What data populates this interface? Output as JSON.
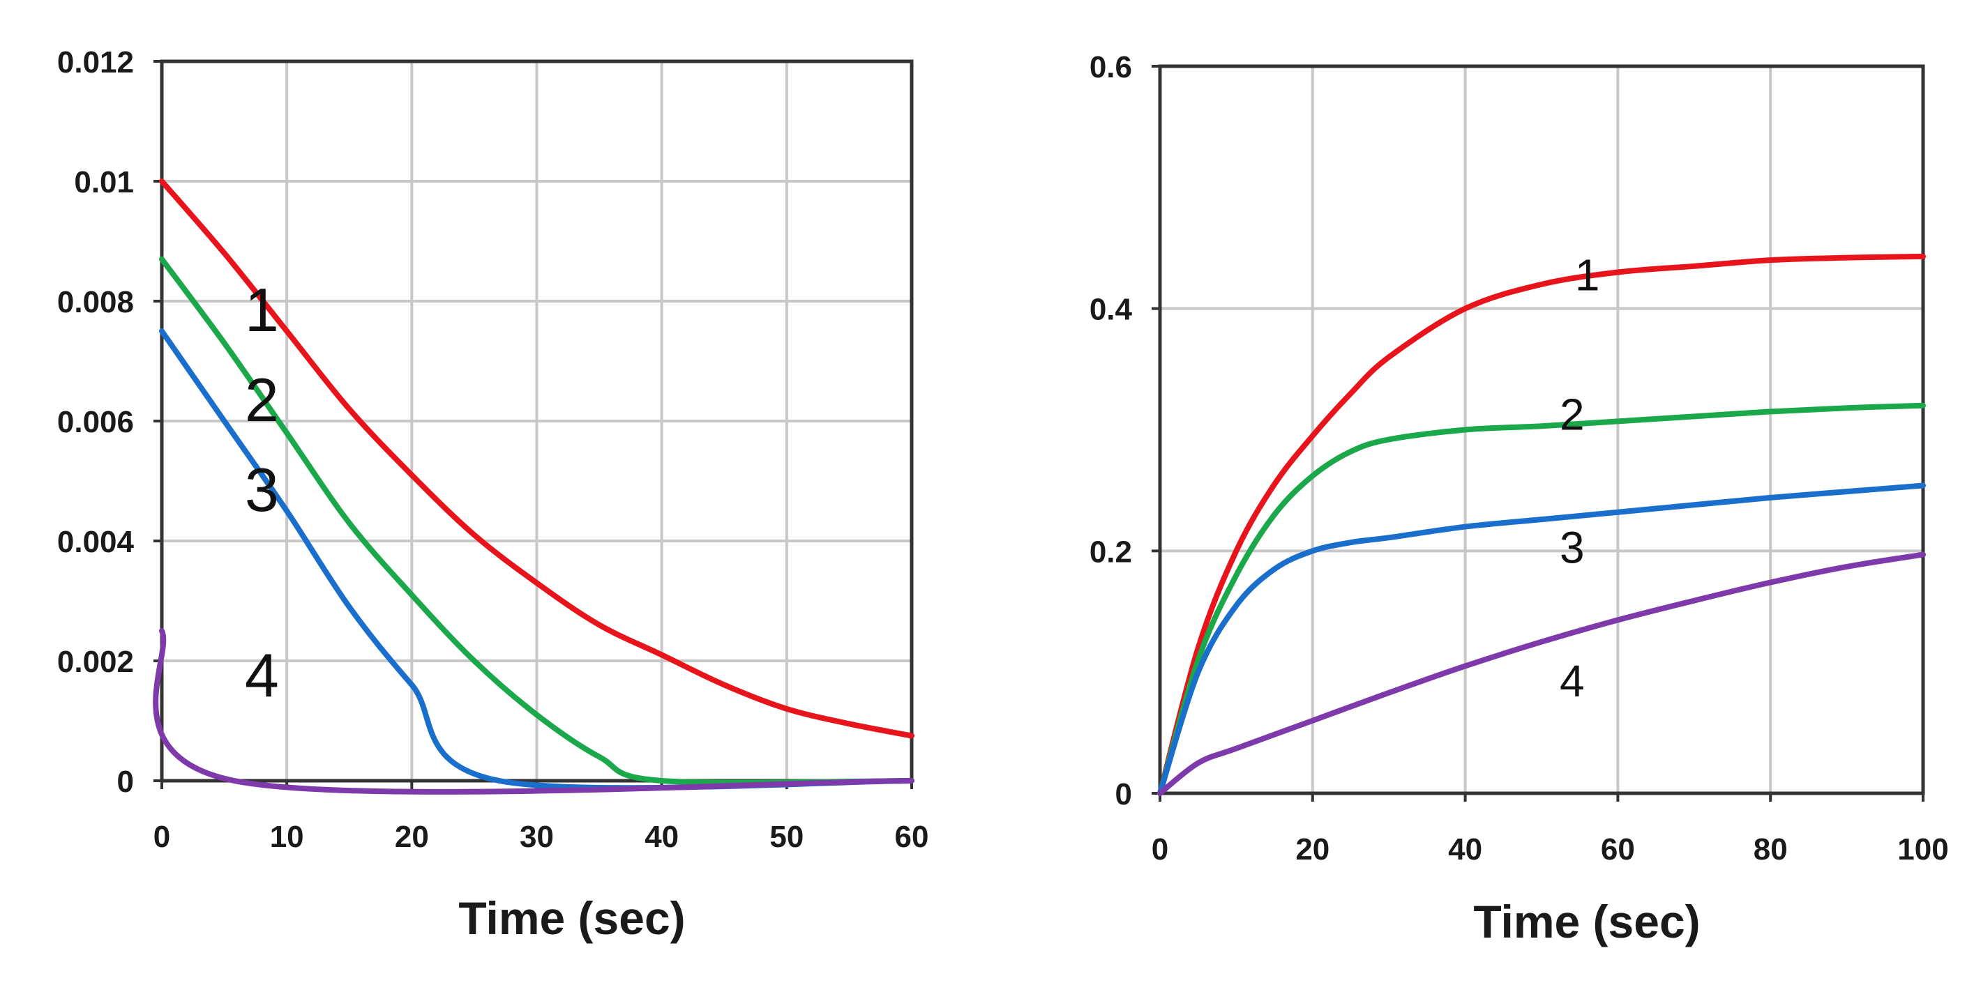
{
  "chart_data": [
    {
      "type": "line",
      "title": "",
      "xlabel": "Time (sec)",
      "ylabel": "",
      "xlim": [
        0,
        60
      ],
      "ylim": [
        0,
        0.012
      ],
      "xticks": [
        0,
        10,
        20,
        30,
        40,
        50,
        60
      ],
      "xtick_labels": [
        "0",
        "10",
        "20",
        "30",
        "40",
        "50",
        "60"
      ],
      "yticks": [
        0,
        0.002,
        0.004,
        0.006,
        0.008,
        0.01,
        0.012
      ],
      "ytick_labels": [
        "0",
        "0.002",
        "0.004",
        "0.006",
        "0.008",
        "0.01",
        "0.012"
      ],
      "grid": true,
      "series": [
        {
          "name": "1",
          "color": "#e8141c",
          "x": [
            0,
            5,
            10,
            15,
            20,
            25,
            30,
            35,
            40,
            45,
            50,
            55,
            60
          ],
          "y": [
            0.01,
            0.0088,
            0.0075,
            0.0062,
            0.0051,
            0.0041,
            0.0033,
            0.0026,
            0.0021,
            0.0016,
            0.0012,
            0.00095,
            0.00075
          ]
        },
        {
          "name": "2",
          "color": "#1aa84a",
          "x": [
            0,
            5,
            10,
            15,
            20,
            25,
            30,
            35,
            40,
            60
          ],
          "y": [
            0.0087,
            0.0073,
            0.0058,
            0.0043,
            0.0031,
            0.002,
            0.0011,
            0.0004,
            0,
            0
          ]
        },
        {
          "name": "3",
          "color": "#1a6fcc",
          "x": [
            0,
            5,
            10,
            15,
            20,
            27,
            60
          ],
          "y": [
            0.0075,
            0.006,
            0.0045,
            0.0029,
            0.0016,
            0,
            0
          ]
        },
        {
          "name": "4",
          "color": "#7e3aaa",
          "x": [
            0,
            5.8,
            60
          ],
          "y": [
            0.0025,
            0,
            0
          ]
        }
      ],
      "annotations": [
        {
          "text": "1",
          "x": 8,
          "y": 0.0075
        },
        {
          "text": "2",
          "x": 8,
          "y": 0.006
        },
        {
          "text": "3",
          "x": 8,
          "y": 0.0045
        },
        {
          "text": "4",
          "x": 8,
          "y": 0.0014
        }
      ]
    },
    {
      "type": "line",
      "title": "",
      "xlabel": "Time (sec)",
      "ylabel": "",
      "xlim": [
        0,
        100
      ],
      "ylim": [
        0,
        0.6
      ],
      "xticks": [
        0,
        20,
        40,
        60,
        80,
        100
      ],
      "xtick_labels": [
        "0",
        "20",
        "40",
        "60",
        "80",
        "100"
      ],
      "yticks": [
        0,
        0.2,
        0.4,
        0.6
      ],
      "ytick_labels": [
        "0",
        "0.2",
        "0.4",
        "0.6"
      ],
      "grid": true,
      "series": [
        {
          "name": "1",
          "color": "#e8141c",
          "x": [
            0,
            5,
            10,
            15,
            20,
            25,
            30,
            40,
            50,
            60,
            70,
            80,
            90,
            100
          ],
          "y": [
            0,
            0.12,
            0.2,
            0.255,
            0.295,
            0.33,
            0.36,
            0.4,
            0.42,
            0.43,
            0.435,
            0.44,
            0.442,
            0.443
          ]
        },
        {
          "name": "2",
          "color": "#1aa84a",
          "x": [
            0,
            5,
            10,
            15,
            20,
            25,
            30,
            40,
            50,
            60,
            70,
            80,
            90,
            100
          ],
          "y": [
            0,
            0.11,
            0.18,
            0.23,
            0.262,
            0.282,
            0.292,
            0.3,
            0.303,
            0.307,
            0.311,
            0.315,
            0.318,
            0.32
          ]
        },
        {
          "name": "3",
          "color": "#1a6fcc",
          "x": [
            0,
            5,
            10,
            15,
            20,
            25,
            30,
            40,
            50,
            60,
            70,
            80,
            90,
            100
          ],
          "y": [
            0,
            0.1,
            0.155,
            0.185,
            0.2,
            0.207,
            0.211,
            0.22,
            0.226,
            0.232,
            0.238,
            0.244,
            0.249,
            0.254
          ]
        },
        {
          "name": "4",
          "color": "#7e3aaa",
          "x": [
            0,
            5,
            10,
            20,
            30,
            40,
            50,
            60,
            70,
            80,
            90,
            100
          ],
          "y": [
            0,
            0.025,
            0.037,
            0.06,
            0.083,
            0.105,
            0.125,
            0.143,
            0.159,
            0.174,
            0.187,
            0.197
          ]
        }
      ],
      "annotations": [
        {
          "text": "1",
          "x": 56,
          "y": 0.415
        },
        {
          "text": "2",
          "x": 54,
          "y": 0.3
        },
        {
          "text": "3",
          "x": 54,
          "y": 0.19
        },
        {
          "text": "4",
          "x": 54,
          "y": 0.08
        }
      ]
    }
  ]
}
